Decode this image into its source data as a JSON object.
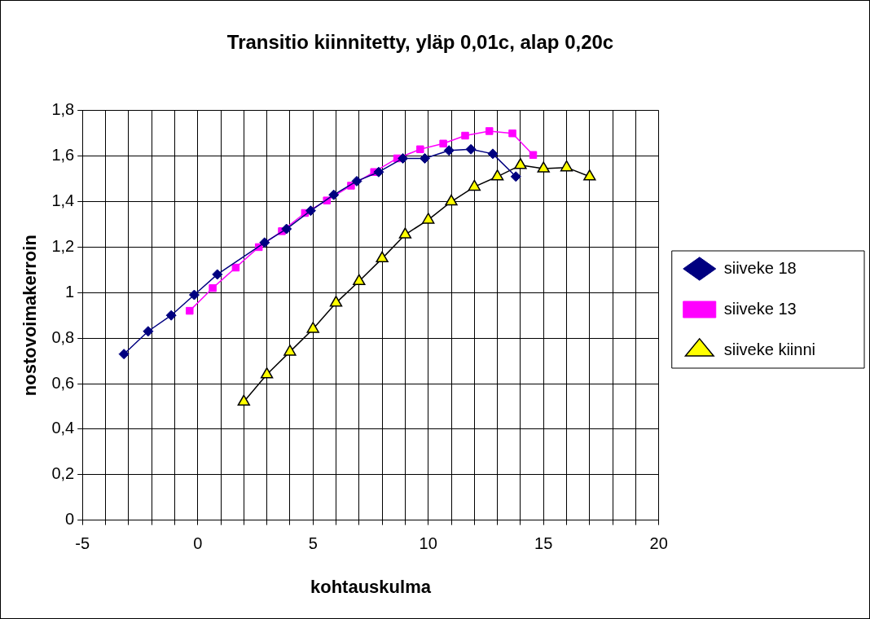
{
  "chart_data": {
    "type": "scatter",
    "title": "Transitio kiinnitetty, yläp 0,01c, alap 0,20c",
    "xlabel": "kohtauskulma",
    "ylabel": "nostovoimakerroin",
    "xlim": [
      -5,
      20
    ],
    "ylim": [
      0,
      1.8
    ],
    "xticks": [
      -5,
      {
        "value": -4,
        "label": null
      },
      {
        "value": -3,
        "label": null
      },
      {
        "value": -2,
        "label": null
      },
      {
        "value": -1,
        "label": null
      },
      0,
      {
        "value": 1,
        "label": null
      },
      {
        "value": 2,
        "label": null
      },
      {
        "value": 3,
        "label": null
      },
      {
        "value": 4,
        "label": null
      },
      5,
      {
        "value": 6,
        "label": null
      },
      {
        "value": 7,
        "label": null
      },
      {
        "value": 8,
        "label": null
      },
      {
        "value": 9,
        "label": null
      },
      10,
      {
        "value": 11,
        "label": null
      },
      {
        "value": 12,
        "label": null
      },
      {
        "value": 13,
        "label": null
      },
      {
        "value": 14,
        "label": null
      },
      15,
      {
        "value": 16,
        "label": null
      },
      {
        "value": 17,
        "label": null
      },
      {
        "value": 18,
        "label": null
      },
      {
        "value": 19,
        "label": null
      },
      20
    ],
    "yticks": [
      0,
      {
        "value": 0.2,
        "label": "0,2"
      },
      {
        "value": 0.4,
        "label": "0,4"
      },
      {
        "value": 0.6,
        "label": "0,6"
      },
      {
        "value": 0.8,
        "label": "0,8"
      },
      1,
      {
        "value": 1.2,
        "label": "1,2"
      },
      {
        "value": 1.4,
        "label": "1,4"
      },
      {
        "value": 1.6,
        "label": "1,6"
      },
      {
        "value": 1.8,
        "label": "1,8"
      }
    ],
    "grid": true,
    "legend": "right",
    "line_style": "solid",
    "series": [
      {
        "name": "siiveke 18",
        "type": "line",
        "marker": "diamond",
        "color": "#000080",
        "x": [
          -3.2,
          -2.15,
          -1.15,
          -0.15,
          0.85,
          2.9,
          3.85,
          4.9,
          5.9,
          6.9,
          7.85,
          8.9,
          9.85,
          10.9,
          11.85,
          12.8,
          13.8
        ],
        "values": [
          0.73,
          0.83,
          0.9,
          0.99,
          1.08,
          1.22,
          1.28,
          1.36,
          1.43,
          1.49,
          1.53,
          1.59,
          1.59,
          1.625,
          1.63,
          1.61,
          1.51
        ]
      },
      {
        "name": "siiveke 13",
        "type": "line",
        "marker": "square",
        "color": "#ff00ff",
        "x": [
          -0.35,
          0.65,
          1.65,
          2.65,
          3.65,
          4.65,
          5.6,
          6.65,
          7.65,
          8.65,
          9.65,
          10.65,
          11.6,
          12.65,
          13.65,
          14.55
        ],
        "values": [
          0.92,
          1.02,
          1.11,
          1.2,
          1.27,
          1.35,
          1.405,
          1.47,
          1.53,
          1.59,
          1.63,
          1.655,
          1.69,
          1.71,
          1.7,
          1.605
        ]
      },
      {
        "name": "siiveke kiinni",
        "type": "line",
        "marker": "triangle",
        "color": "#000000",
        "x": [
          2,
          3,
          4,
          5,
          6,
          7,
          8,
          9,
          10,
          11,
          12,
          13,
          14,
          15,
          16,
          17
        ],
        "values": [
          0.52,
          0.64,
          0.74,
          0.84,
          0.955,
          1.05,
          1.15,
          1.255,
          1.32,
          1.4,
          1.465,
          1.51,
          1.56,
          1.545,
          1.55,
          1.51
        ]
      }
    ]
  }
}
